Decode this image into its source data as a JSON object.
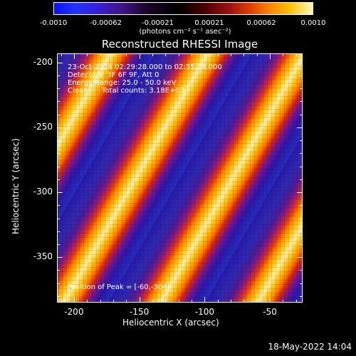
{
  "colorbar": {
    "ticks": [
      "-0.0010",
      "-0.00062",
      "-0.00021",
      "0.00021",
      "0.00062",
      "0.0010"
    ],
    "units": "(photons cm⁻² s⁻¹ asec⁻²)",
    "range": [
      -0.001,
      0.001
    ]
  },
  "chart_data": {
    "type": "heatmap",
    "title": "Reconstructed RHESSI Image",
    "xlabel": "Heliocentric X (arcsec)",
    "ylabel": "Heliocentric Y (arcsec)",
    "xlim": [
      -213,
      -25
    ],
    "ylim": [
      -385,
      -193
    ],
    "x_ticks": [
      "-200",
      "-150",
      "-100",
      "-50"
    ],
    "y_ticks": [
      "-200",
      "-250",
      "-300",
      "-350"
    ],
    "annotations": {
      "time": "23-Oct-2014 02:29:28.000 to 02:35:28.000",
      "detectors": "Detectors: 3F 6F 9F, Att 0",
      "energy": "Energy Range: 25.0 - 50.0 keV",
      "clean": "Clean",
      "counts": "Total counts: 3.18E+03",
      "peak": "Position of Peak = [-60,-304]"
    },
    "peak": [
      -60,
      -304
    ]
  },
  "footer": {
    "timestamp": "18-May-2022 14:04"
  }
}
